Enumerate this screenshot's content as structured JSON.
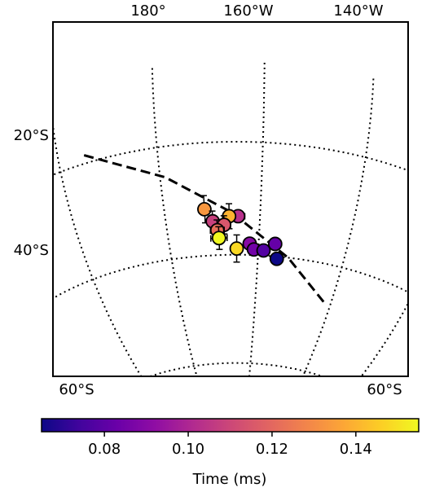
{
  "chart_data": {
    "type": "scatter",
    "projection": "orthographic",
    "meridian_labels": [
      "180°",
      "160°W",
      "140°W"
    ],
    "parallel_labels": [
      "20°S",
      "40°S"
    ],
    "bottom_labels": [
      "60°S",
      "60°S"
    ],
    "colorbar": {
      "label": "Time (ms)",
      "colormap": "plasma",
      "range": [
        0.065,
        0.155
      ],
      "ticks": [
        0.08,
        0.1,
        0.12,
        0.14
      ],
      "tick_labels": [
        "0.08",
        "0.10",
        "0.12",
        "0.14"
      ]
    },
    "grid": true,
    "grid_style": "dotted",
    "points": [
      {
        "lon": -171.6,
        "lat": -31.8,
        "time": 0.133,
        "err_lon": 0.6,
        "err_lat": 2.4
      },
      {
        "lon": -170.0,
        "lat": -34.0,
        "time": 0.108,
        "err_lon": 1.0,
        "err_lat": 1.8
      },
      {
        "lon": -164.6,
        "lat": -33.2,
        "time": 0.103,
        "err_lon": 1.4,
        "err_lat": 1.0
      },
      {
        "lon": -166.5,
        "lat": -33.2,
        "time": 0.14,
        "err_lon": 0.5,
        "err_lat": 2.2
      },
      {
        "lon": -167.6,
        "lat": -34.7,
        "time": 0.115,
        "err_lon": 1.4,
        "err_lat": 1.6
      },
      {
        "lon": -169.1,
        "lat": -35.6,
        "time": 0.122,
        "err_lon": 1.5,
        "err_lat": 1.8
      },
      {
        "lon": -168.8,
        "lat": -37.0,
        "time": 0.155,
        "err_lon": 1.8,
        "err_lat": 2.0
      },
      {
        "lon": -164.9,
        "lat": -38.9,
        "time": 0.148,
        "err_lon": 1.2,
        "err_lat": 2.4
      },
      {
        "lon": -162.0,
        "lat": -38.0,
        "time": 0.09,
        "err_lon": 0.8,
        "err_lat": 0.9
      },
      {
        "lon": -161.0,
        "lat": -39.0,
        "time": 0.085,
        "err_lon": 0.6,
        "err_lat": 0.6
      },
      {
        "lon": -158.8,
        "lat": -39.1,
        "time": 0.078,
        "err_lon": 0.5,
        "err_lat": 0.5
      },
      {
        "lon": -156.3,
        "lat": -37.8,
        "time": 0.082,
        "err_lon": 0.8,
        "err_lat": 0.8
      },
      {
        "lon": -155.6,
        "lat": -40.4,
        "time": 0.065,
        "err_lon": 0.7,
        "err_lat": 0.6
      }
    ],
    "great_circle": {
      "style": "dashed",
      "points": [
        [
          -194.5,
          -18.5
        ],
        [
          -179.0,
          -25.5
        ],
        [
          -166.0,
          -32.5
        ],
        [
          -153.0,
          -40.0
        ],
        [
          -142.0,
          -46.7
        ]
      ]
    }
  },
  "colors": {
    "frame": "#000000",
    "grid": "#000000",
    "marker_edge": "#000000"
  }
}
